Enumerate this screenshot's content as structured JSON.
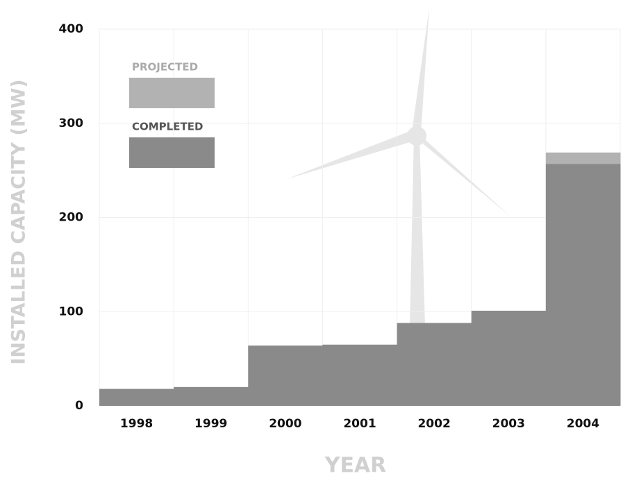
{
  "chart_data": {
    "type": "bar",
    "stacked": true,
    "x_label": "YEAR",
    "y_label": "INSTALLED CAPACITY (MW)",
    "categories": [
      "1998",
      "1999",
      "2000",
      "2001",
      "2002",
      "2003",
      "2004"
    ],
    "series": [
      {
        "name": "COMPLETED",
        "color": "#8a8a8a",
        "values": [
          18,
          20,
          64,
          65,
          88,
          101,
          257
        ]
      },
      {
        "name": "PROJECTED",
        "color": "#b2b2b2",
        "values": [
          0,
          0,
          0,
          0,
          0,
          0,
          12
        ]
      }
    ],
    "ylim": [
      0,
      400
    ],
    "yticks": [
      0,
      100,
      200,
      300,
      400
    ],
    "grid": true
  }
}
